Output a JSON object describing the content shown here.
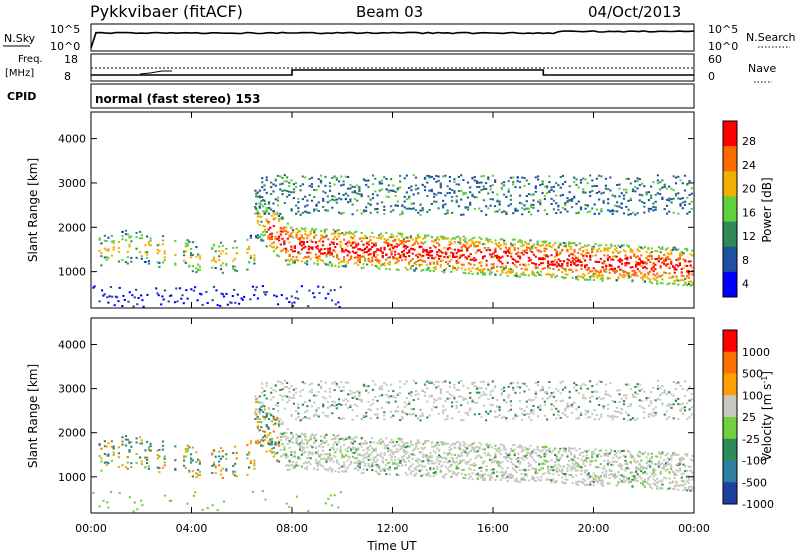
{
  "header": {
    "radar": "Pykkvibaer (fitACF)",
    "beam": "Beam 03",
    "date": "04/Oct/2013"
  },
  "summary": {
    "nsky_label": "N.Sky",
    "nsearch_label": "N.Search",
    "freq_label_1": "Freq.",
    "freq_label_2": "[MHz]",
    "nave_label": "Nave",
    "cpid_label": "CPID",
    "cpid_text": "normal (fast stereo) 153",
    "noise_ticks": [
      "10^5",
      "10^0"
    ],
    "freq_ticks": [
      "18",
      "8"
    ],
    "nave_ticks": [
      "60",
      "0"
    ]
  },
  "chart_data": [
    {
      "type": "heatmap",
      "ylabel": "Slant Range [km]",
      "yticks": [
        1000,
        2000,
        3000,
        4000
      ],
      "ylim": [
        180,
        4600
      ],
      "colorbar_label": "Power [dB]",
      "colorbar_ticks": [
        "28",
        "24",
        "20",
        "16",
        "12",
        "8",
        "4"
      ],
      "colors": [
        "#0000ff",
        "#2050a0",
        "#2e8b57",
        "#5fd040",
        "#f0b000",
        "#ff6a00",
        "#ff0000"
      ]
    },
    {
      "type": "heatmap",
      "xlabel": "Time UT",
      "ylabel": "Slant Range [km]",
      "yticks": [
        1000,
        2000,
        3000,
        4000
      ],
      "ylim": [
        180,
        4600
      ],
      "colorbar_label": "Velocity [m s^-1]",
      "colorbar_ticks": [
        "1000",
        "500",
        "100",
        "25",
        "-25",
        "-100",
        "-500",
        "-1000"
      ],
      "colors": [
        "#1e3fa0",
        "#2f7fa0",
        "#2e8b57",
        "#70d040",
        "#c8c8c0",
        "#ffa000",
        "#ff7000",
        "#ff0000"
      ]
    }
  ],
  "time_axis": {
    "label": "Time UT",
    "ticks": [
      "00:00",
      "04:00",
      "08:00",
      "12:00",
      "16:00",
      "20:00",
      "00:00"
    ]
  }
}
